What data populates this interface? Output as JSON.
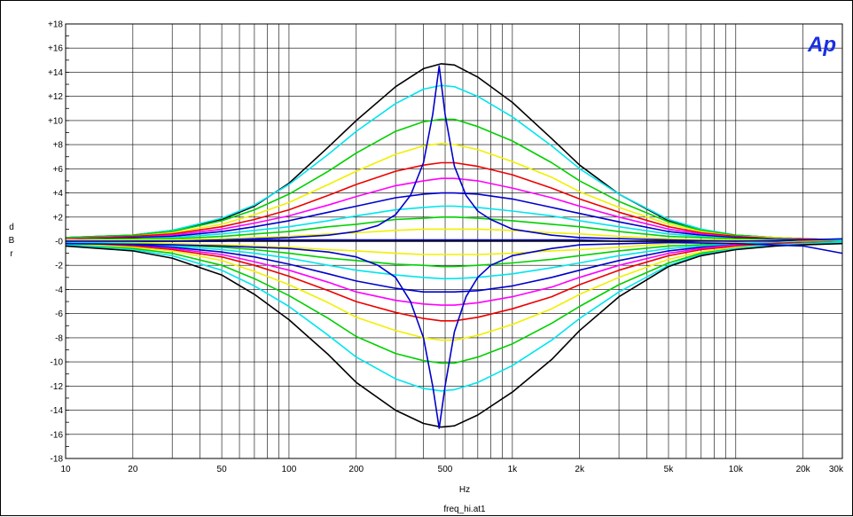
{
  "chart_data": {
    "type": "line",
    "xscale": "log",
    "xlim": [
      10,
      30000
    ],
    "ylim": [
      -18,
      18
    ],
    "grid": true,
    "xlabel": "Hz",
    "ylabel": "d\nB\nr",
    "footer": "freq_hi.at1",
    "logo": "Ap",
    "xticks": [
      {
        "v": 10,
        "label": "10"
      },
      {
        "v": 20,
        "label": "20"
      },
      {
        "v": 50,
        "label": "50"
      },
      {
        "v": 100,
        "label": "100"
      },
      {
        "v": 200,
        "label": "200"
      },
      {
        "v": 500,
        "label": "500"
      },
      {
        "v": 1000,
        "label": "1k"
      },
      {
        "v": 2000,
        "label": "2k"
      },
      {
        "v": 5000,
        "label": "5k"
      },
      {
        "v": 10000,
        "label": "10k"
      },
      {
        "v": 20000,
        "label": "20k"
      },
      {
        "v": 30000,
        "label": "30k"
      }
    ],
    "yticks": [
      {
        "v": 18,
        "label": "+18"
      },
      {
        "v": 16,
        "label": "+16"
      },
      {
        "v": 14,
        "label": "+14"
      },
      {
        "v": 12,
        "label": "+12"
      },
      {
        "v": 10,
        "label": "+10"
      },
      {
        "v": 8,
        "label": "+8"
      },
      {
        "v": 6,
        "label": "+6"
      },
      {
        "v": 4,
        "label": "+4"
      },
      {
        "v": 2,
        "label": "+2"
      },
      {
        "v": 0,
        "label": "-0"
      },
      {
        "v": -2,
        "label": "-2"
      },
      {
        "v": -4,
        "label": "-4"
      },
      {
        "v": -6,
        "label": "-6"
      },
      {
        "v": -8,
        "label": "-8"
      },
      {
        "v": -10,
        "label": "-10"
      },
      {
        "v": -12,
        "label": "-12"
      },
      {
        "v": -14,
        "label": "-14"
      },
      {
        "v": -16,
        "label": "-16"
      },
      {
        "v": -18,
        "label": "-18"
      }
    ],
    "x": [
      10,
      20,
      30,
      50,
      70,
      100,
      150,
      200,
      300,
      400,
      480,
      550,
      700,
      1000,
      1500,
      2000,
      3000,
      5000,
      7000,
      10000,
      15000,
      20000,
      30000
    ],
    "series": [
      {
        "color": "#000000",
        "values": [
          0.3,
          0.5,
          0.9,
          1.8,
          2.9,
          4.8,
          7.8,
          10.0,
          12.8,
          14.3,
          14.7,
          14.6,
          13.6,
          11.5,
          8.5,
          6.3,
          3.9,
          1.7,
          0.9,
          0.5,
          0.3,
          0.2,
          0.1
        ]
      },
      {
        "color": "#00e5ee",
        "values": [
          0.3,
          0.5,
          0.9,
          1.9,
          3.0,
          4.7,
          7.2,
          9.1,
          11.4,
          12.6,
          12.9,
          12.8,
          12.0,
          10.3,
          7.9,
          6.0,
          3.9,
          1.8,
          1.0,
          0.5,
          0.3,
          0.2,
          0.1
        ]
      },
      {
        "color": "#00d000",
        "values": [
          0.3,
          0.5,
          0.8,
          1.7,
          2.6,
          3.9,
          5.8,
          7.3,
          9.1,
          9.9,
          10.1,
          10.1,
          9.5,
          8.3,
          6.5,
          5.0,
          3.3,
          1.6,
          0.9,
          0.5,
          0.3,
          0.2,
          0.1
        ]
      },
      {
        "color": "#f0f000",
        "values": [
          0.2,
          0.4,
          0.7,
          1.4,
          2.2,
          3.2,
          4.7,
          5.8,
          7.2,
          7.9,
          8.1,
          8.0,
          7.6,
          6.6,
          5.3,
          4.1,
          2.8,
          1.4,
          0.8,
          0.4,
          0.3,
          0.2,
          0.1
        ]
      },
      {
        "color": "#ee0000",
        "values": [
          0.2,
          0.4,
          0.6,
          1.2,
          1.8,
          2.6,
          3.8,
          4.7,
          5.8,
          6.3,
          6.5,
          6.5,
          6.2,
          5.5,
          4.4,
          3.5,
          2.4,
          1.2,
          0.7,
          0.4,
          0.2,
          0.2,
          0.1
        ]
      },
      {
        "color": "#ff00ff",
        "values": [
          0.2,
          0.3,
          0.5,
          1.0,
          1.5,
          2.1,
          3.0,
          3.7,
          4.6,
          5.0,
          5.2,
          5.2,
          5.0,
          4.4,
          3.6,
          2.9,
          2.0,
          1.0,
          0.6,
          0.3,
          0.2,
          0.1,
          0.1
        ]
      },
      {
        "color": "#0000cc",
        "values": [
          0.1,
          0.3,
          0.4,
          0.8,
          1.2,
          1.7,
          2.4,
          2.9,
          3.6,
          3.9,
          4.0,
          4.0,
          3.9,
          3.5,
          2.8,
          2.3,
          1.6,
          0.8,
          0.5,
          0.3,
          0.2,
          0.1,
          0.1
        ]
      },
      {
        "color": "#00e5ee",
        "values": [
          0.1,
          0.2,
          0.3,
          0.6,
          0.9,
          1.2,
          1.7,
          2.1,
          2.6,
          2.8,
          2.9,
          2.9,
          2.8,
          2.5,
          2.1,
          1.7,
          1.2,
          0.6,
          0.4,
          0.2,
          0.1,
          0.1,
          0.1
        ]
      },
      {
        "color": "#00d000",
        "values": [
          0.1,
          0.2,
          0.2,
          0.4,
          0.6,
          0.8,
          1.2,
          1.4,
          1.8,
          1.9,
          2.0,
          2.0,
          1.9,
          1.7,
          1.4,
          1.2,
          0.8,
          0.4,
          0.3,
          0.2,
          0.1,
          0.1,
          0.0
        ]
      },
      {
        "color": "#f0f000",
        "values": [
          0.1,
          0.1,
          0.1,
          0.2,
          0.3,
          0.4,
          0.6,
          0.7,
          0.9,
          1.0,
          1.0,
          1.0,
          1.0,
          0.9,
          0.7,
          0.6,
          0.4,
          0.2,
          0.1,
          0.1,
          0.1,
          0.0,
          0.0
        ]
      },
      {
        "color": "#0000cc",
        "values": [
          -0.1,
          0.0,
          0.0,
          0.0,
          0.1,
          0.1,
          0.1,
          0.1,
          0.1,
          0.1,
          0.1,
          0.1,
          0.1,
          0.1,
          0.1,
          0.1,
          0.0,
          0.0,
          0.0,
          0.0,
          0.0,
          0.0,
          0.0
        ]
      },
      {
        "color": "#000000",
        "values": [
          0.0,
          0.0,
          0.0,
          0.0,
          0.0,
          0.0,
          0.0,
          0.0,
          0.0,
          0.0,
          0.0,
          0.0,
          0.0,
          0.0,
          0.0,
          0.0,
          0.0,
          0.0,
          0.0,
          0.0,
          0.0,
          0.0,
          0.0
        ]
      },
      {
        "color": "#f0f000",
        "values": [
          -0.1,
          -0.1,
          -0.2,
          -0.3,
          -0.4,
          -0.5,
          -0.7,
          -0.8,
          -1.0,
          -1.1,
          -1.1,
          -1.1,
          -1.1,
          -1.0,
          -0.8,
          -0.7,
          -0.5,
          -0.2,
          -0.1,
          -0.1,
          -0.1,
          0.0,
          0.0
        ]
      },
      {
        "color": "#00d000",
        "values": [
          -0.1,
          -0.2,
          -0.3,
          -0.5,
          -0.7,
          -1.0,
          -1.4,
          -1.6,
          -1.9,
          -2.0,
          -2.1,
          -2.1,
          -2.0,
          -1.8,
          -1.5,
          -1.2,
          -0.8,
          -0.4,
          -0.3,
          -0.2,
          -0.1,
          -0.1,
          0.0
        ]
      },
      {
        "color": "#00e5ee",
        "values": [
          -0.1,
          -0.2,
          -0.4,
          -0.7,
          -1.0,
          -1.4,
          -2.0,
          -2.4,
          -2.8,
          -3.0,
          -3.1,
          -3.1,
          -3.0,
          -2.7,
          -2.2,
          -1.8,
          -1.2,
          -0.6,
          -0.4,
          -0.2,
          -0.1,
          -0.1,
          0.0
        ]
      },
      {
        "color": "#0000cc",
        "values": [
          -0.2,
          -0.3,
          -0.5,
          -0.9,
          -1.3,
          -1.9,
          -2.7,
          -3.3,
          -3.9,
          -4.2,
          -4.2,
          -4.2,
          -4.1,
          -3.7,
          -3.0,
          -2.4,
          -1.6,
          -0.8,
          -0.5,
          -0.3,
          -0.2,
          -0.1,
          -0.1
        ]
      },
      {
        "color": "#ff00ff",
        "values": [
          -0.2,
          -0.4,
          -0.6,
          -1.1,
          -1.7,
          -2.4,
          -3.4,
          -4.2,
          -4.9,
          -5.2,
          -5.3,
          -5.3,
          -5.1,
          -4.6,
          -3.8,
          -3.0,
          -2.0,
          -1.0,
          -0.6,
          -0.3,
          -0.2,
          -0.1,
          -0.1
        ]
      },
      {
        "color": "#ee0000",
        "values": [
          -0.2,
          -0.4,
          -0.7,
          -1.3,
          -2.0,
          -2.9,
          -4.1,
          -5.0,
          -5.9,
          -6.4,
          -6.6,
          -6.6,
          -6.3,
          -5.6,
          -4.6,
          -3.6,
          -2.4,
          -1.2,
          -0.7,
          -0.4,
          -0.2,
          -0.1,
          -0.1
        ]
      },
      {
        "color": "#f0f000",
        "values": [
          -0.2,
          -0.5,
          -0.8,
          -1.6,
          -2.5,
          -3.6,
          -5.1,
          -6.3,
          -7.4,
          -8.0,
          -8.2,
          -8.2,
          -7.8,
          -6.9,
          -5.6,
          -4.4,
          -3.0,
          -1.5,
          -0.9,
          -0.5,
          -0.3,
          -0.2,
          -0.1
        ]
      },
      {
        "color": "#00d000",
        "values": [
          -0.3,
          -0.6,
          -1.0,
          -2.0,
          -3.1,
          -4.5,
          -6.4,
          -7.9,
          -9.3,
          -9.9,
          -10.1,
          -10.1,
          -9.6,
          -8.5,
          -6.8,
          -5.4,
          -3.6,
          -1.8,
          -1.0,
          -0.6,
          -0.3,
          -0.2,
          -0.1
        ]
      },
      {
        "color": "#00e5ee",
        "values": [
          -0.3,
          -0.7,
          -1.2,
          -2.4,
          -3.7,
          -5.4,
          -7.8,
          -9.6,
          -11.4,
          -12.2,
          -12.4,
          -12.3,
          -11.7,
          -10.3,
          -8.2,
          -6.4,
          -4.2,
          -2.0,
          -1.1,
          -0.6,
          -0.3,
          -0.2,
          -0.1
        ]
      },
      {
        "color": "#000000",
        "values": [
          -0.4,
          -0.8,
          -1.4,
          -2.8,
          -4.4,
          -6.5,
          -9.4,
          -11.7,
          -14.0,
          -15.1,
          -15.4,
          -15.3,
          -14.4,
          -12.5,
          -9.8,
          -7.4,
          -4.6,
          -2.1,
          -1.2,
          -0.7,
          -0.4,
          -0.3,
          -0.2
        ]
      }
    ],
    "peak_series": [
      {
        "color": "#0000cc",
        "x": [
          10,
          30,
          50,
          100,
          150,
          200,
          250,
          300,
          350,
          400,
          440,
          470,
          500,
          550,
          620,
          700,
          800,
          1000,
          1500,
          2000,
          5000,
          10000,
          20000,
          30000
        ],
        "values": [
          0.0,
          0.0,
          0.1,
          0.3,
          0.5,
          0.8,
          1.3,
          2.2,
          3.8,
          6.5,
          10.5,
          14.5,
          10.5,
          6.2,
          3.8,
          2.5,
          1.8,
          1.0,
          0.5,
          0.3,
          0.1,
          0.0,
          0.1,
          0.2
        ]
      },
      {
        "color": "#0000cc",
        "x": [
          10,
          30,
          50,
          100,
          150,
          200,
          250,
          300,
          350,
          400,
          440,
          470,
          500,
          550,
          620,
          700,
          800,
          1000,
          1500,
          2000,
          5000,
          10000,
          20000,
          30000
        ],
        "values": [
          -0.2,
          -0.3,
          -0.4,
          -0.6,
          -0.9,
          -1.3,
          -2.0,
          -3.0,
          -5.0,
          -8.0,
          -12.0,
          -15.5,
          -12.0,
          -7.5,
          -4.6,
          -3.0,
          -2.0,
          -1.2,
          -0.6,
          -0.3,
          -0.1,
          -0.2,
          -0.4,
          -1.0
        ]
      }
    ]
  }
}
